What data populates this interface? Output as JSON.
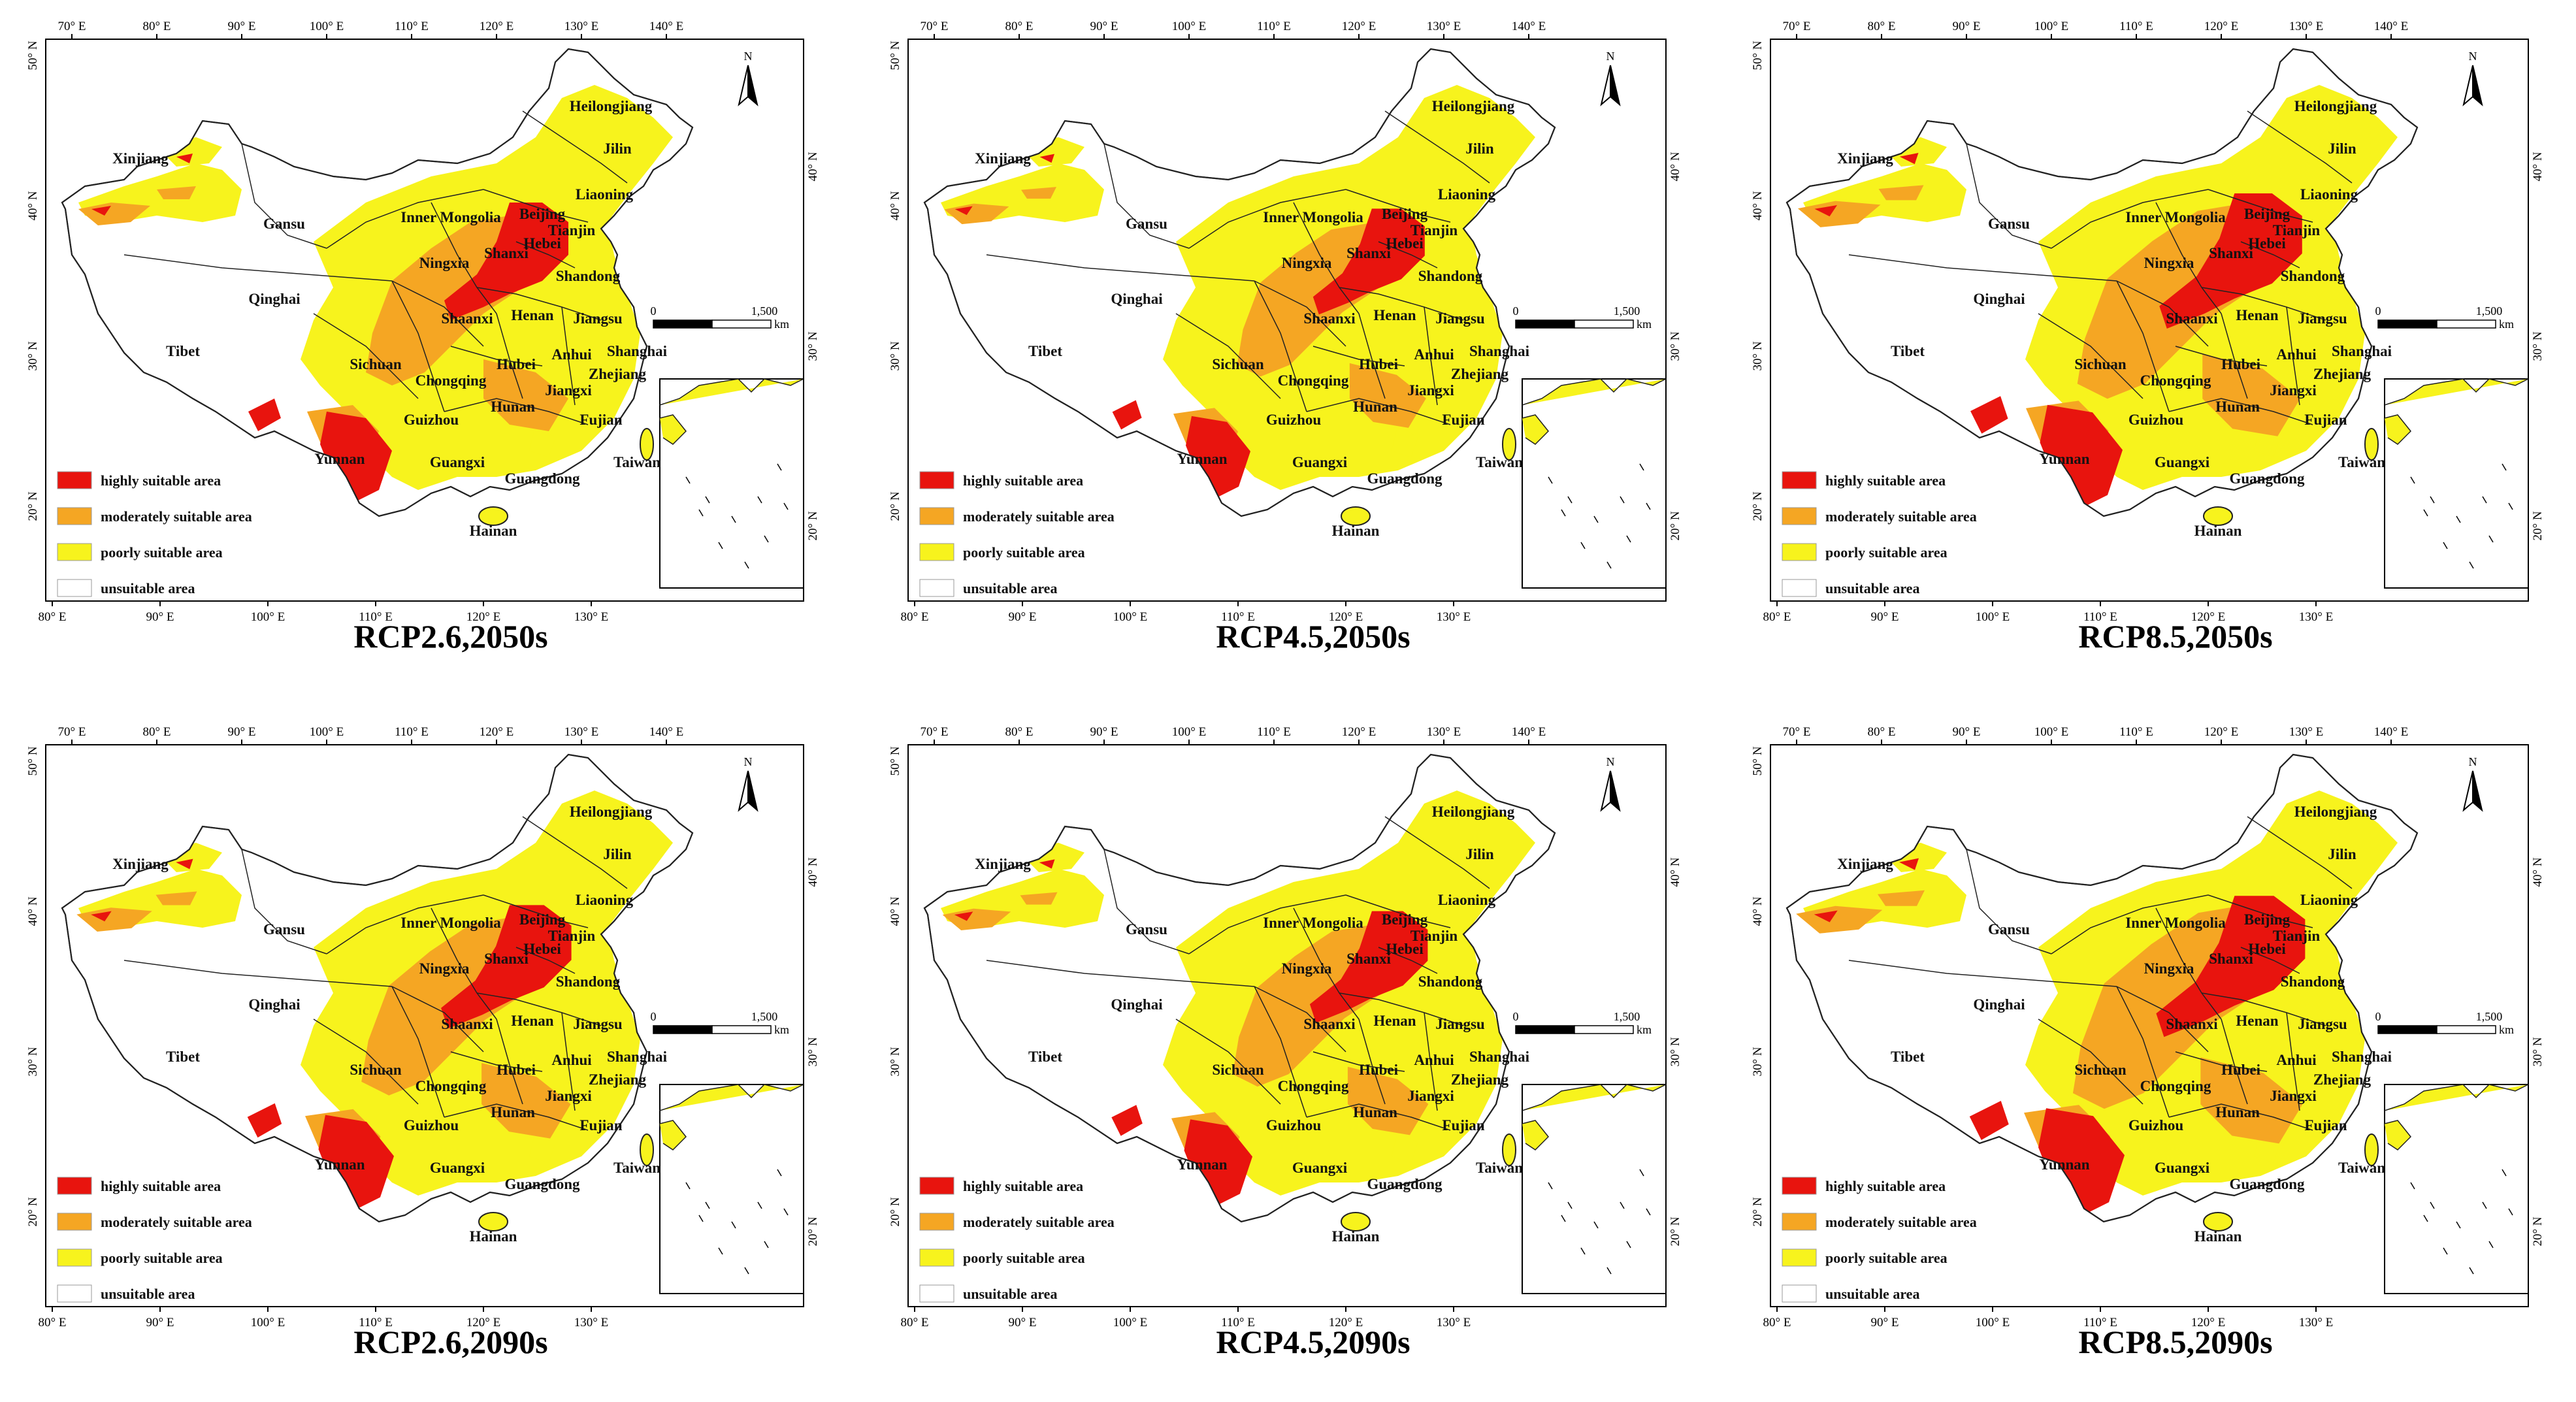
{
  "colors": {
    "highly": "#e8140e",
    "moderately": "#f5a623",
    "poorly": "#f7f31d",
    "unsuitable": "#ffffff",
    "border": "#222222"
  },
  "legend": [
    {
      "key": "highly",
      "label": "highly suitable area"
    },
    {
      "key": "moderately",
      "label": "moderately suitable area"
    },
    {
      "key": "poorly",
      "label": "poorly suitable area"
    },
    {
      "key": "unsuitable",
      "label": "unsuitable area"
    }
  ],
  "axes": {
    "top_ticks": [
      "70° E",
      "80° E",
      "90° E",
      "100° E",
      "110° E",
      "120° E",
      "130° E",
      "140° E"
    ],
    "bottom_ticks": [
      "80° E",
      "90° E",
      "100° E",
      "110° E",
      "120° E",
      "130° E"
    ],
    "left_ticks": [
      "50° N",
      "40° N",
      "30° N",
      "20° N"
    ],
    "right_ticks": [
      "40° N",
      "30° N",
      "20° N"
    ]
  },
  "north_arrow": "N",
  "scale_bar": {
    "start": "0",
    "end": "1,500",
    "unit": "km"
  },
  "provinces": [
    "Heilongjiang",
    "Jilin",
    "Liaoning",
    "Xinjiang",
    "Gansu",
    "Inner Mongolia",
    "Beijing",
    "Tianjin",
    "Hebei",
    "Shanxi",
    "Ningxia",
    "Shandong",
    "Qinghai",
    "Shaanxi",
    "Henan",
    "Jiangsu",
    "Tibet",
    "Sichuan",
    "Chongqing",
    "Hubei",
    "Anhui",
    "Shanghai",
    "Zhejiang",
    "Jiangxi",
    "Hunan",
    "Guizhou",
    "Fujian",
    "Yunnan",
    "Guangxi",
    "Guangdong",
    "Taiwan",
    "Hainan"
  ],
  "panels": [
    {
      "title": "RCP2.6,2050s",
      "intensity": 1.0
    },
    {
      "title": "RCP4.5,2050s",
      "intensity": 0.9
    },
    {
      "title": "RCP8.5,2050s",
      "intensity": 1.15
    },
    {
      "title": "RCP2.6,2090s",
      "intensity": 1.05
    },
    {
      "title": "RCP4.5,2090s",
      "intensity": 0.95
    },
    {
      "title": "RCP8.5,2090s",
      "intensity": 1.2
    }
  ]
}
